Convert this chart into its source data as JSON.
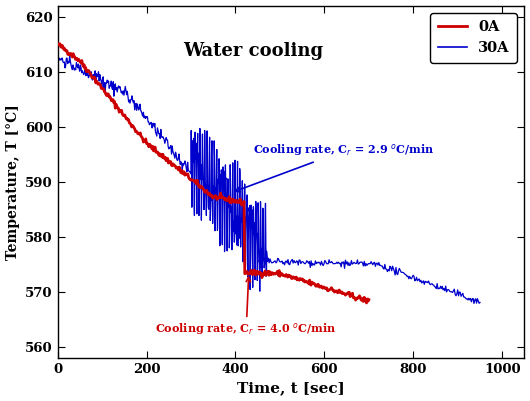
{
  "title": "Water cooling",
  "xlabel": "Time, t [sec]",
  "ylabel": "Temperature, T [°C]",
  "xlim": [
    0,
    1050
  ],
  "ylim": [
    558,
    622
  ],
  "xticks": [
    0,
    200,
    400,
    600,
    800,
    1000
  ],
  "yticks": [
    560,
    570,
    580,
    590,
    600,
    610,
    620
  ],
  "legend_0A": "0A",
  "legend_30A": "30A",
  "color_0A": "#cc0000",
  "color_30A": "#0000cc",
  "annot_30A": "Cooling rate, C$_r$ = 2.9 $^o$C/min",
  "annot_0A": "Cooling rate, C$_r$ = 4.0 $^o$C/min",
  "annot_30A_color": "#0000cc",
  "annot_0A_color": "#cc0000"
}
